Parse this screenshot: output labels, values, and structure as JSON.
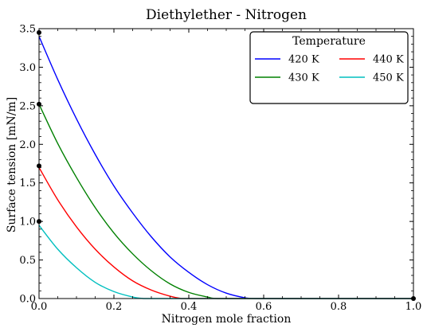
{
  "chart_data": {
    "type": "line",
    "title": "Diethylether - Nitrogen",
    "xlabel": "Nitrogen mole fraction",
    "ylabel": "Surface tension [mN/m]",
    "xlim": [
      0.0,
      1.0
    ],
    "ylim": [
      0.0,
      3.5
    ],
    "xticks": [
      0.0,
      0.2,
      0.4,
      0.6,
      0.8,
      1.0
    ],
    "xtick_labels": [
      "0.0",
      "0.2",
      "0.4",
      "0.6",
      "0.8",
      "1.0"
    ],
    "yticks": [
      0.0,
      0.5,
      1.0,
      1.5,
      2.0,
      2.5,
      3.0,
      3.5
    ],
    "ytick_labels": [
      "0.0",
      "0.5",
      "1.0",
      "1.5",
      "2.0",
      "2.5",
      "3.0",
      "3.5"
    ],
    "grid": false,
    "legend": {
      "title": "Temperature",
      "placement": "top-right",
      "columns": 2
    },
    "series": [
      {
        "name": "420 K",
        "color": "#0000ff",
        "x": [
          0.0,
          0.05,
          0.1,
          0.15,
          0.2,
          0.25,
          0.3,
          0.35,
          0.4,
          0.45,
          0.5,
          0.55,
          0.58,
          0.6,
          0.8,
          1.0
        ],
        "y": [
          3.4,
          2.84,
          2.33,
          1.87,
          1.46,
          1.11,
          0.8,
          0.54,
          0.34,
          0.18,
          0.07,
          0.01,
          0.0,
          0.0,
          0.0,
          0.0
        ]
      },
      {
        "name": "430 K",
        "color": "#008000",
        "x": [
          0.0,
          0.05,
          0.1,
          0.15,
          0.2,
          0.25,
          0.3,
          0.35,
          0.4,
          0.45,
          0.48,
          0.6,
          0.8,
          1.0
        ],
        "y": [
          2.52,
          2.01,
          1.57,
          1.18,
          0.85,
          0.58,
          0.36,
          0.19,
          0.08,
          0.02,
          0.0,
          0.0,
          0.0,
          0.0
        ]
      },
      {
        "name": "440 K",
        "color": "#ff0000",
        "x": [
          0.0,
          0.05,
          0.1,
          0.15,
          0.2,
          0.25,
          0.3,
          0.35,
          0.38,
          0.4,
          0.6,
          0.8,
          1.0
        ],
        "y": [
          1.7,
          1.28,
          0.93,
          0.64,
          0.41,
          0.23,
          0.11,
          0.03,
          0.0,
          0.0,
          0.0,
          0.0,
          0.0
        ]
      },
      {
        "name": "450 K",
        "color": "#00bfbf",
        "x": [
          0.0,
          0.05,
          0.1,
          0.15,
          0.2,
          0.25,
          0.28,
          0.3,
          0.4,
          0.6,
          0.8,
          1.0
        ],
        "y": [
          0.95,
          0.64,
          0.4,
          0.21,
          0.09,
          0.02,
          0.0,
          0.0,
          0.0,
          0.0,
          0.0,
          0.0
        ]
      }
    ],
    "markers": [
      {
        "x": 0.0,
        "y": 3.45
      },
      {
        "x": 0.0,
        "y": 2.52
      },
      {
        "x": 0.0,
        "y": 1.72
      },
      {
        "x": 0.0,
        "y": 1.0
      },
      {
        "x": 1.0,
        "y": 0.0
      }
    ]
  }
}
